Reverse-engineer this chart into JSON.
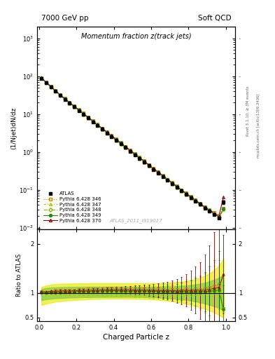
{
  "title_main": "Momentum fraction z(track jets)",
  "header_left": "7000 GeV pp",
  "header_right": "Soft QCD",
  "ylabel_main": "(1/Njet)dN/dz",
  "ylabel_ratio": "Ratio to ATLAS",
  "xlabel": "Charged Particle z",
  "watermark": "ATLAS_2011_I919017",
  "right_label1": "Rivet 3.1.10, ≥ 3M events",
  "right_label2": "mcplots.cern.ch [arXiv:1306.3436]",
  "ylim_main": [
    0.009,
    2000
  ],
  "ylim_ratio": [
    0.42,
    2.3
  ],
  "xlim": [
    -0.01,
    1.05
  ],
  "z_values": [
    0.013,
    0.038,
    0.063,
    0.088,
    0.113,
    0.138,
    0.163,
    0.188,
    0.213,
    0.238,
    0.263,
    0.288,
    0.313,
    0.338,
    0.363,
    0.388,
    0.413,
    0.438,
    0.463,
    0.488,
    0.513,
    0.538,
    0.563,
    0.588,
    0.613,
    0.638,
    0.663,
    0.688,
    0.713,
    0.738,
    0.763,
    0.788,
    0.813,
    0.838,
    0.863,
    0.888,
    0.913,
    0.938,
    0.963,
    0.988
  ],
  "atlas_y": [
    88.0,
    68.0,
    52.0,
    40.0,
    31.0,
    24.5,
    19.5,
    15.5,
    12.3,
    9.8,
    7.8,
    6.2,
    4.95,
    3.95,
    3.15,
    2.52,
    2.02,
    1.62,
    1.3,
    1.04,
    0.83,
    0.665,
    0.535,
    0.43,
    0.345,
    0.278,
    0.224,
    0.18,
    0.145,
    0.117,
    0.094,
    0.076,
    0.062,
    0.05,
    0.041,
    0.033,
    0.027,
    0.022,
    0.018,
    0.047
  ],
  "atlas_yerr_lo": [
    4.0,
    3.0,
    2.5,
    2.0,
    1.5,
    1.2,
    1.0,
    0.8,
    0.6,
    0.5,
    0.4,
    0.32,
    0.26,
    0.2,
    0.16,
    0.13,
    0.1,
    0.08,
    0.07,
    0.055,
    0.044,
    0.035,
    0.028,
    0.023,
    0.018,
    0.015,
    0.012,
    0.01,
    0.008,
    0.006,
    0.005,
    0.004,
    0.003,
    0.0025,
    0.002,
    0.0018,
    0.0015,
    0.0012,
    0.001,
    0.005
  ],
  "atlas_yerr_hi": [
    4.0,
    3.0,
    2.5,
    2.0,
    1.5,
    1.2,
    1.0,
    0.8,
    0.6,
    0.5,
    0.4,
    0.32,
    0.26,
    0.2,
    0.16,
    0.13,
    0.1,
    0.08,
    0.07,
    0.055,
    0.044,
    0.035,
    0.028,
    0.023,
    0.018,
    0.015,
    0.012,
    0.01,
    0.008,
    0.006,
    0.005,
    0.004,
    0.003,
    0.0025,
    0.002,
    0.0018,
    0.0015,
    0.0012,
    0.001,
    0.005
  ],
  "py346_y": [
    90.0,
    69.0,
    53.5,
    42.0,
    32.5,
    26.0,
    20.5,
    16.5,
    13.2,
    10.5,
    8.4,
    6.7,
    5.35,
    4.28,
    3.42,
    2.74,
    2.19,
    1.75,
    1.4,
    1.12,
    0.9,
    0.72,
    0.58,
    0.46,
    0.37,
    0.3,
    0.24,
    0.19,
    0.155,
    0.125,
    0.1,
    0.082,
    0.066,
    0.054,
    0.044,
    0.036,
    0.03,
    0.025,
    0.021,
    0.032
  ],
  "py347_y": [
    87.0,
    67.0,
    51.5,
    39.5,
    30.5,
    24.0,
    19.0,
    15.2,
    12.0,
    9.6,
    7.65,
    6.1,
    4.88,
    3.88,
    3.1,
    2.48,
    1.98,
    1.59,
    1.27,
    1.02,
    0.815,
    0.655,
    0.525,
    0.422,
    0.338,
    0.272,
    0.218,
    0.176,
    0.141,
    0.114,
    0.092,
    0.074,
    0.06,
    0.049,
    0.04,
    0.033,
    0.027,
    0.022,
    0.018,
    0.03
  ],
  "py348_y": [
    89.0,
    68.0,
    52.5,
    40.5,
    31.5,
    25.0,
    19.8,
    15.8,
    12.6,
    10.0,
    7.98,
    6.38,
    5.1,
    4.07,
    3.26,
    2.61,
    2.09,
    1.67,
    1.34,
    1.07,
    0.856,
    0.686,
    0.55,
    0.441,
    0.354,
    0.284,
    0.228,
    0.184,
    0.148,
    0.119,
    0.096,
    0.077,
    0.063,
    0.051,
    0.041,
    0.034,
    0.028,
    0.023,
    0.019,
    0.031
  ],
  "py349_y": [
    89.5,
    68.5,
    52.8,
    40.7,
    31.5,
    25.0,
    19.9,
    15.9,
    12.7,
    10.1,
    8.05,
    6.43,
    5.14,
    4.11,
    3.29,
    2.63,
    2.11,
    1.69,
    1.35,
    1.08,
    0.865,
    0.693,
    0.556,
    0.446,
    0.357,
    0.287,
    0.23,
    0.185,
    0.149,
    0.12,
    0.097,
    0.078,
    0.063,
    0.051,
    0.042,
    0.034,
    0.028,
    0.023,
    0.019,
    0.031
  ],
  "py370_y": [
    90.5,
    69.5,
    53.8,
    41.5,
    32.2,
    25.6,
    20.3,
    16.2,
    12.9,
    10.3,
    8.2,
    6.55,
    5.24,
    4.19,
    3.35,
    2.68,
    2.15,
    1.72,
    1.38,
    1.1,
    0.88,
    0.705,
    0.566,
    0.454,
    0.364,
    0.292,
    0.235,
    0.189,
    0.152,
    0.122,
    0.099,
    0.08,
    0.065,
    0.053,
    0.043,
    0.035,
    0.029,
    0.024,
    0.02,
    0.065
  ],
  "py346_ratio": [
    1.02,
    1.01,
    1.03,
    1.05,
    1.05,
    1.06,
    1.05,
    1.06,
    1.07,
    1.07,
    1.08,
    1.08,
    1.08,
    1.08,
    1.09,
    1.09,
    1.08,
    1.08,
    1.08,
    1.08,
    1.08,
    1.08,
    1.08,
    1.07,
    1.07,
    1.08,
    1.07,
    1.06,
    1.07,
    1.07,
    1.06,
    1.08,
    1.06,
    1.08,
    1.07,
    1.09,
    1.11,
    1.14,
    1.17,
    0.68
  ],
  "py347_ratio": [
    0.99,
    0.985,
    0.99,
    0.988,
    0.984,
    0.98,
    0.974,
    0.98,
    0.976,
    0.98,
    0.98,
    0.984,
    0.986,
    0.982,
    0.984,
    0.984,
    0.98,
    0.982,
    0.977,
    0.981,
    0.982,
    0.985,
    0.981,
    0.981,
    0.979,
    0.979,
    0.973,
    0.978,
    0.972,
    0.974,
    0.979,
    0.974,
    0.968,
    0.98,
    0.976,
    1.0,
    1.0,
    1.0,
    1.0,
    0.638
  ],
  "py348_ratio": [
    1.011,
    1.0,
    1.01,
    1.013,
    1.016,
    1.02,
    1.015,
    1.019,
    1.024,
    1.02,
    1.023,
    1.029,
    1.03,
    1.03,
    1.035,
    1.036,
    1.035,
    1.031,
    1.031,
    1.029,
    1.031,
    1.032,
    1.028,
    1.026,
    1.026,
    1.022,
    1.018,
    1.022,
    1.021,
    1.017,
    1.021,
    1.013,
    1.016,
    1.02,
    1.0,
    1.03,
    1.037,
    1.045,
    1.056,
    0.66
  ],
  "py349_ratio": [
    1.017,
    1.007,
    1.015,
    1.018,
    1.016,
    1.02,
    1.021,
    1.026,
    1.033,
    1.031,
    1.032,
    1.037,
    1.039,
    1.041,
    1.044,
    1.044,
    1.045,
    1.043,
    1.038,
    1.038,
    1.042,
    1.042,
    1.039,
    1.037,
    1.035,
    1.032,
    1.027,
    1.028,
    1.024,
    1.026,
    1.032,
    1.026,
    1.016,
    1.02,
    1.024,
    1.03,
    1.037,
    1.045,
    1.056,
    0.66
  ],
  "py370_ratio": [
    1.028,
    1.022,
    1.035,
    1.038,
    1.039,
    1.045,
    1.041,
    1.045,
    1.049,
    1.051,
    1.051,
    1.056,
    1.058,
    1.061,
    1.063,
    1.063,
    1.065,
    1.062,
    1.062,
    1.058,
    1.06,
    1.06,
    1.057,
    1.056,
    1.055,
    1.05,
    1.049,
    1.05,
    1.048,
    1.043,
    1.053,
    1.053,
    1.048,
    1.06,
    1.049,
    1.061,
    1.074,
    1.091,
    1.111,
    1.383
  ],
  "py346_rerr": [
    0.02,
    0.02,
    0.02,
    0.02,
    0.025,
    0.025,
    0.025,
    0.025,
    0.03,
    0.03,
    0.03,
    0.03,
    0.035,
    0.035,
    0.04,
    0.04,
    0.045,
    0.05,
    0.055,
    0.06,
    0.065,
    0.07,
    0.075,
    0.08,
    0.09,
    0.1,
    0.11,
    0.12,
    0.14,
    0.15,
    0.17,
    0.19,
    0.21,
    0.24,
    0.27,
    0.31,
    0.36,
    0.42,
    0.5,
    0.3
  ],
  "py347_rerr": [
    0.018,
    0.018,
    0.02,
    0.02,
    0.022,
    0.022,
    0.025,
    0.025,
    0.028,
    0.028,
    0.03,
    0.032,
    0.035,
    0.037,
    0.04,
    0.043,
    0.046,
    0.05,
    0.055,
    0.06,
    0.065,
    0.07,
    0.075,
    0.082,
    0.09,
    0.1,
    0.11,
    0.125,
    0.14,
    0.16,
    0.18,
    0.21,
    0.24,
    0.28,
    0.33,
    0.4,
    0.5,
    0.62,
    0.8,
    0.5
  ],
  "py348_rerr": [
    0.018,
    0.018,
    0.02,
    0.02,
    0.022,
    0.022,
    0.025,
    0.025,
    0.028,
    0.028,
    0.03,
    0.032,
    0.035,
    0.037,
    0.04,
    0.043,
    0.046,
    0.05,
    0.055,
    0.06,
    0.065,
    0.07,
    0.075,
    0.082,
    0.09,
    0.1,
    0.11,
    0.125,
    0.14,
    0.16,
    0.18,
    0.21,
    0.24,
    0.28,
    0.33,
    0.4,
    0.5,
    0.62,
    0.8,
    0.5
  ],
  "py349_rerr": [
    0.018,
    0.018,
    0.02,
    0.02,
    0.022,
    0.022,
    0.025,
    0.025,
    0.028,
    0.028,
    0.03,
    0.032,
    0.035,
    0.037,
    0.04,
    0.043,
    0.046,
    0.05,
    0.055,
    0.06,
    0.065,
    0.07,
    0.075,
    0.082,
    0.09,
    0.1,
    0.11,
    0.125,
    0.14,
    0.16,
    0.18,
    0.21,
    0.24,
    0.28,
    0.33,
    0.4,
    0.5,
    0.62,
    0.8,
    0.5
  ],
  "py370_rerr": [
    0.02,
    0.02,
    0.022,
    0.022,
    0.025,
    0.025,
    0.028,
    0.028,
    0.032,
    0.032,
    0.035,
    0.038,
    0.042,
    0.045,
    0.05,
    0.055,
    0.06,
    0.065,
    0.072,
    0.08,
    0.088,
    0.097,
    0.107,
    0.118,
    0.13,
    0.145,
    0.16,
    0.18,
    0.21,
    0.24,
    0.28,
    0.33,
    0.4,
    0.48,
    0.58,
    0.72,
    0.9,
    1.15,
    1.5,
    0.8
  ],
  "band_z": [
    0.013,
    0.038,
    0.063,
    0.088,
    0.113,
    0.138,
    0.163,
    0.188,
    0.213,
    0.238,
    0.263,
    0.288,
    0.313,
    0.338,
    0.363,
    0.388,
    0.413,
    0.438,
    0.463,
    0.488,
    0.513,
    0.538,
    0.563,
    0.588,
    0.613,
    0.638,
    0.663,
    0.688,
    0.713,
    0.738,
    0.763,
    0.788,
    0.813,
    0.838,
    0.863,
    0.888,
    0.913,
    0.938,
    0.963,
    0.988
  ],
  "band_outer_lo": [
    0.75,
    0.78,
    0.8,
    0.82,
    0.83,
    0.84,
    0.85,
    0.855,
    0.86,
    0.865,
    0.87,
    0.875,
    0.878,
    0.88,
    0.882,
    0.883,
    0.884,
    0.884,
    0.883,
    0.882,
    0.88,
    0.878,
    0.875,
    0.87,
    0.865,
    0.858,
    0.85,
    0.84,
    0.828,
    0.814,
    0.798,
    0.78,
    0.758,
    0.734,
    0.706,
    0.674,
    0.638,
    0.596,
    0.548,
    0.494
  ],
  "band_outer_hi": [
    1.12,
    1.15,
    1.17,
    1.18,
    1.185,
    1.19,
    1.192,
    1.194,
    1.196,
    1.197,
    1.198,
    1.199,
    1.2,
    1.2,
    1.2,
    1.2,
    1.2,
    1.2,
    1.2,
    1.2,
    1.2,
    1.2,
    1.2,
    1.2,
    1.2,
    1.2,
    1.2,
    1.21,
    1.21,
    1.22,
    1.23,
    1.24,
    1.26,
    1.28,
    1.31,
    1.35,
    1.4,
    1.47,
    1.56,
    1.7
  ],
  "band_inner_lo": [
    0.85,
    0.87,
    0.88,
    0.89,
    0.895,
    0.9,
    0.905,
    0.908,
    0.91,
    0.912,
    0.914,
    0.916,
    0.917,
    0.918,
    0.919,
    0.92,
    0.92,
    0.92,
    0.92,
    0.919,
    0.918,
    0.917,
    0.915,
    0.912,
    0.909,
    0.905,
    0.9,
    0.894,
    0.887,
    0.878,
    0.868,
    0.856,
    0.842,
    0.825,
    0.806,
    0.783,
    0.757,
    0.726,
    0.691,
    0.65
  ],
  "band_inner_hi": [
    1.08,
    1.1,
    1.11,
    1.115,
    1.118,
    1.12,
    1.122,
    1.123,
    1.124,
    1.125,
    1.126,
    1.126,
    1.127,
    1.127,
    1.127,
    1.127,
    1.127,
    1.127,
    1.127,
    1.127,
    1.127,
    1.127,
    1.127,
    1.127,
    1.127,
    1.128,
    1.13,
    1.132,
    1.135,
    1.139,
    1.145,
    1.152,
    1.162,
    1.174,
    1.19,
    1.21,
    1.236,
    1.27,
    1.312,
    1.365
  ],
  "color_346": "#b8860b",
  "color_347": "#aacc00",
  "color_348": "#88bb00",
  "color_349": "#228800",
  "color_370": "#8b0000",
  "color_atlas": "#000000",
  "band_color_outer": "#e8e800",
  "band_color_inner": "#88cc44"
}
